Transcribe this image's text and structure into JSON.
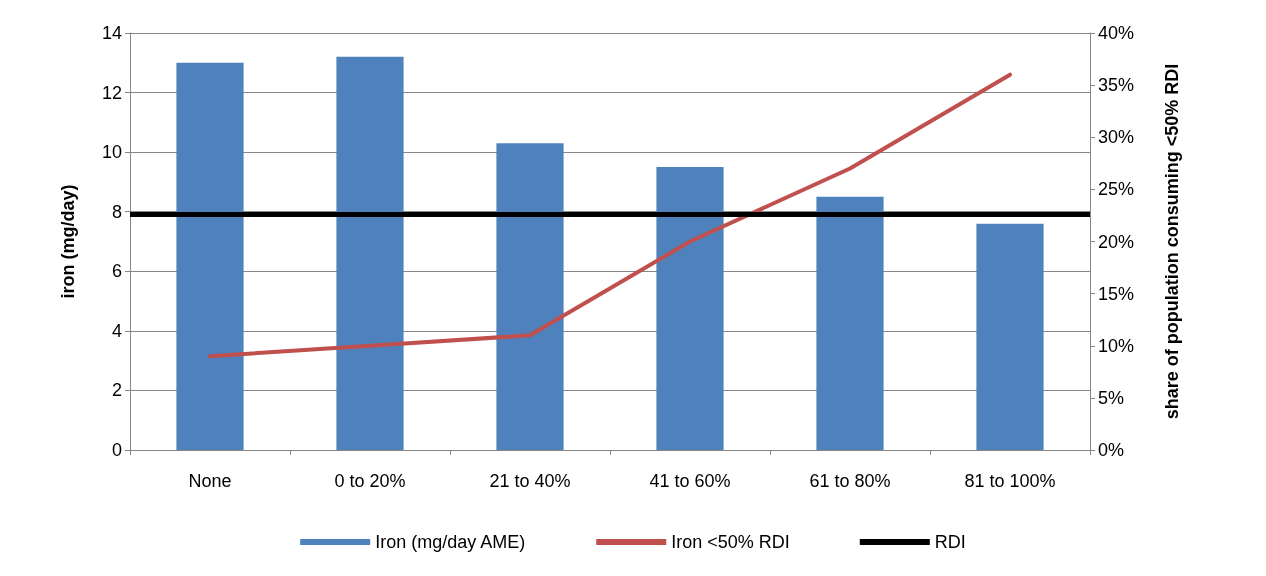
{
  "chart_data": {
    "type": "bar",
    "ylabel": "iron (mg/day)",
    "y2label": "share of population consuming <50% RDI",
    "categories": [
      "None",
      "0 to 20%",
      "21 to 40%",
      "41 to 60%",
      "61 to 80%",
      "81 to 100%"
    ],
    "series": [
      {
        "name": "Iron (mg/day AME)",
        "color": "#4f81bd",
        "values": [
          13.0,
          13.2,
          10.3,
          9.5,
          8.5,
          7.6
        ]
      },
      {
        "name": "Iron <50% RDI",
        "type": "line",
        "axis": "y2",
        "color": "#c0504d",
        "values": [
          9,
          10,
          11,
          20,
          27,
          36
        ]
      }
    ],
    "ref_lines": [
      {
        "axis": "y",
        "value": 7.9,
        "label": "RDI",
        "color": "#000000"
      }
    ],
    "ylim": [
      0,
      14
    ],
    "yticks": [
      0,
      2,
      4,
      6,
      8,
      10,
      12,
      14
    ],
    "y2lim": [
      0,
      40
    ],
    "y2ticks": [
      {
        "value": 0,
        "label": "0%"
      },
      {
        "value": 5,
        "label": "5%"
      },
      {
        "value": 10,
        "label": "10%"
      },
      {
        "value": 15,
        "label": "15%"
      },
      {
        "value": 20,
        "label": "20%"
      },
      {
        "value": 25,
        "label": "25%"
      },
      {
        "value": 30,
        "label": "30%"
      },
      {
        "value": 35,
        "label": "35%"
      },
      {
        "value": 40,
        "label": "40%"
      }
    ],
    "grid": "y",
    "legend": "bottom",
    "marker": "none"
  }
}
